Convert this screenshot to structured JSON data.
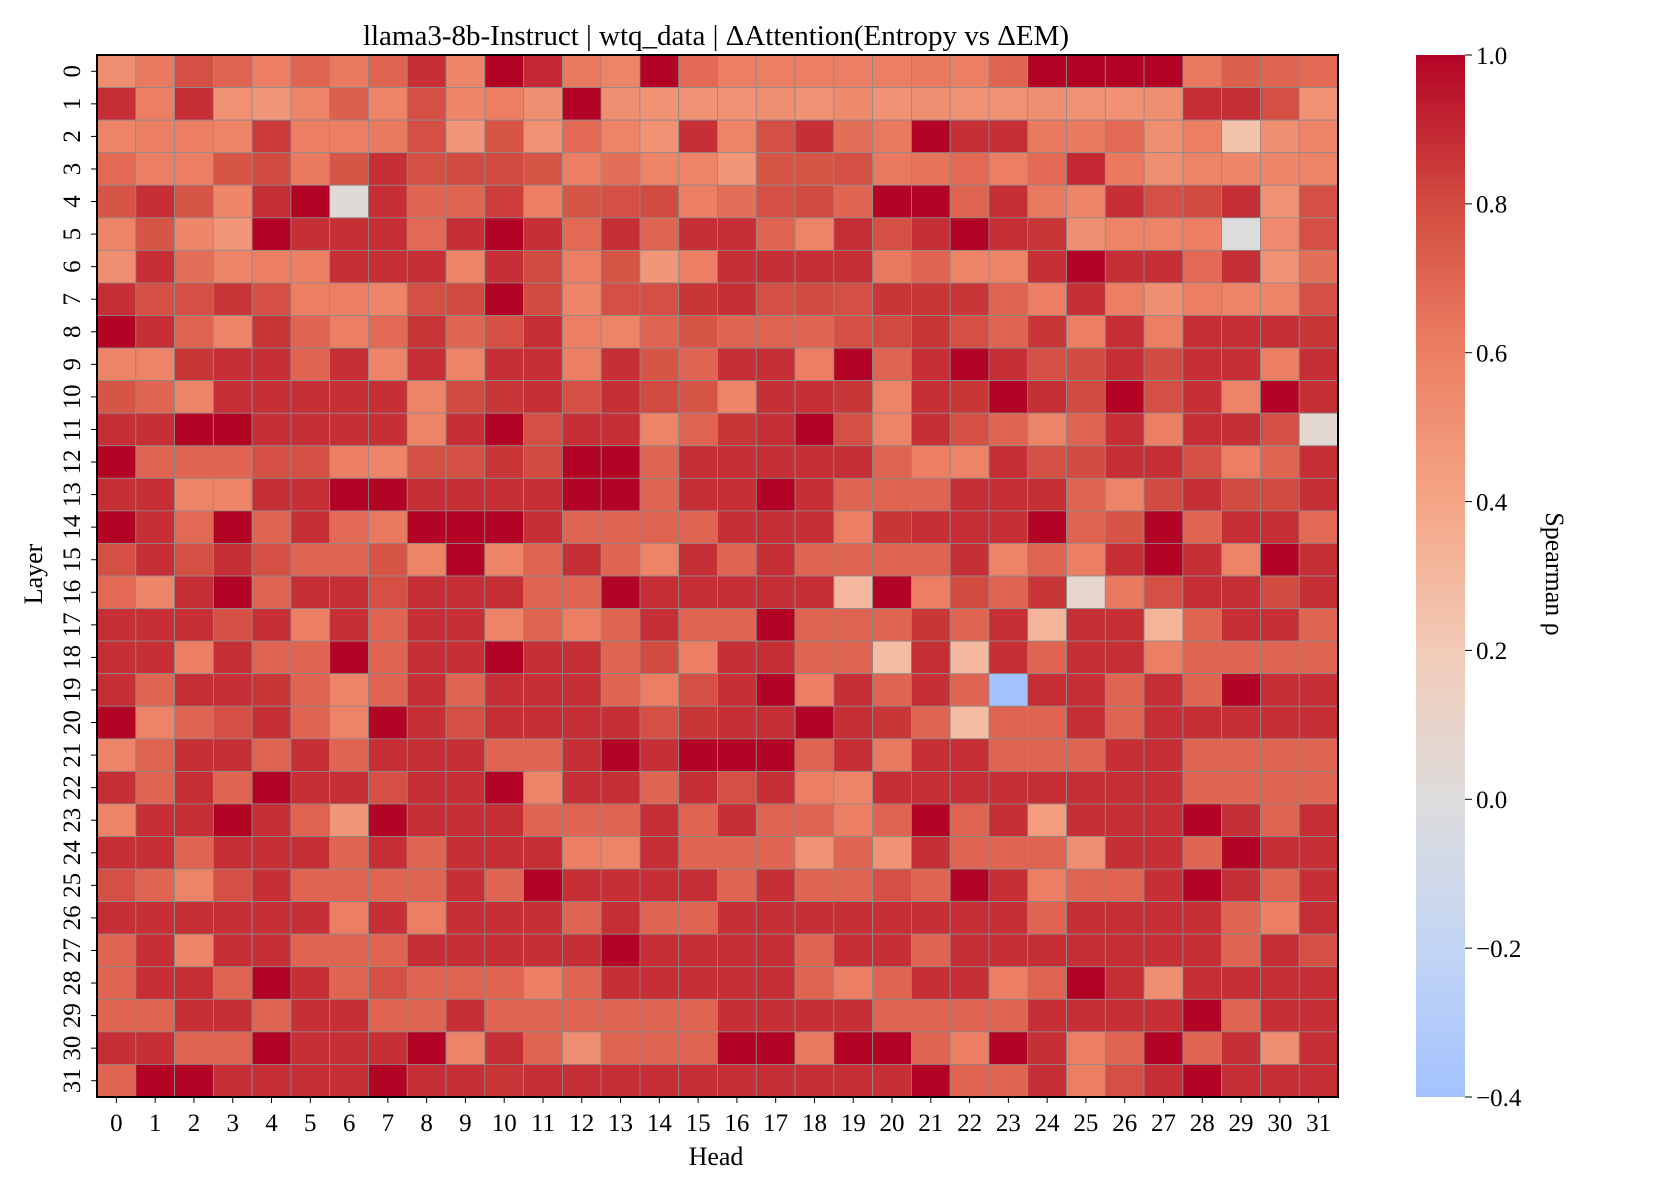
{
  "chart_data": {
    "type": "heatmap",
    "title": "llama3-8b-Instruct | wtq_data | ΔAttention(Entropy vs ΔEM)",
    "xlabel": "Head",
    "ylabel": "Layer",
    "colorbar_label": "Spearman ρ",
    "x_tick_labels": [
      "0",
      "1",
      "2",
      "3",
      "4",
      "5",
      "6",
      "7",
      "8",
      "9",
      "10",
      "11",
      "12",
      "13",
      "14",
      "15",
      "16",
      "17",
      "18",
      "19",
      "20",
      "21",
      "22",
      "23",
      "24",
      "25",
      "26",
      "27",
      "28",
      "29",
      "30",
      "31"
    ],
    "y_tick_labels": [
      "0",
      "1",
      "2",
      "3",
      "4",
      "5",
      "6",
      "7",
      "8",
      "9",
      "10",
      "11",
      "12",
      "13",
      "14",
      "15",
      "16",
      "17",
      "18",
      "19",
      "20",
      "21",
      "22",
      "23",
      "24",
      "25",
      "26",
      "27",
      "28",
      "29",
      "30",
      "31"
    ],
    "colorbar_ticks": [
      {
        "value": 1.0,
        "label": "1.0"
      },
      {
        "value": 0.8,
        "label": "0.8"
      },
      {
        "value": 0.6,
        "label": "0.6"
      },
      {
        "value": 0.4,
        "label": "0.4"
      },
      {
        "value": 0.2,
        "label": "0.2"
      },
      {
        "value": 0.0,
        "label": "0.0"
      },
      {
        "value": -0.2,
        "label": "−0.2"
      },
      {
        "value": -0.4,
        "label": "−0.4"
      }
    ],
    "vmin": -0.4,
    "vmax": 1.0,
    "colormap": "coolwarm",
    "colormap_stops": [
      {
        "v": -0.4,
        "color": "#a3c2fe"
      },
      {
        "v": -0.2,
        "color": "#c3d5f4"
      },
      {
        "v": 0.0,
        "color": "#dddcdc"
      },
      {
        "v": 0.2,
        "color": "#f2cbb7"
      },
      {
        "v": 0.4,
        "color": "#f5a586"
      },
      {
        "v": 0.6,
        "color": "#ec7f63"
      },
      {
        "v": 0.8,
        "color": "#d24b40"
      },
      {
        "v": 1.0,
        "color": "#b40426"
      }
    ],
    "grid_line_color": "#8c8c8c",
    "values": [
      [
        0.52,
        0.62,
        0.78,
        0.7,
        0.6,
        0.7,
        0.62,
        0.7,
        0.88,
        0.58,
        1.0,
        0.9,
        0.62,
        0.58,
        1.0,
        0.68,
        0.6,
        0.6,
        0.6,
        0.6,
        0.6,
        0.62,
        0.6,
        0.7,
        1.0,
        1.0,
        1.0,
        1.0,
        0.62,
        0.72,
        0.7,
        0.68
      ],
      [
        0.88,
        0.6,
        0.88,
        0.5,
        0.48,
        0.58,
        0.72,
        0.58,
        0.78,
        0.56,
        0.6,
        0.52,
        1.0,
        0.52,
        0.5,
        0.5,
        0.5,
        0.52,
        0.5,
        0.55,
        0.5,
        0.52,
        0.5,
        0.5,
        0.52,
        0.5,
        0.5,
        0.52,
        0.88,
        0.88,
        0.78,
        0.5
      ],
      [
        0.58,
        0.6,
        0.6,
        0.58,
        0.85,
        0.6,
        0.6,
        0.62,
        0.78,
        0.48,
        0.76,
        0.5,
        0.68,
        0.58,
        0.5,
        0.88,
        0.58,
        0.78,
        0.88,
        0.66,
        0.62,
        1.0,
        0.88,
        0.88,
        0.62,
        0.62,
        0.68,
        0.52,
        0.6,
        0.24,
        0.52,
        0.58
      ],
      [
        0.68,
        0.6,
        0.6,
        0.76,
        0.8,
        0.62,
        0.76,
        0.88,
        0.78,
        0.8,
        0.8,
        0.76,
        0.6,
        0.66,
        0.58,
        0.58,
        0.48,
        0.76,
        0.76,
        0.78,
        0.62,
        0.64,
        0.68,
        0.6,
        0.68,
        0.9,
        0.62,
        0.52,
        0.58,
        0.56,
        0.56,
        0.58
      ],
      [
        0.76,
        0.88,
        0.76,
        0.56,
        0.88,
        1.0,
        0.02,
        0.88,
        0.7,
        0.7,
        0.84,
        0.6,
        0.76,
        0.78,
        0.8,
        0.6,
        0.66,
        0.78,
        0.8,
        0.7,
        1.0,
        1.0,
        0.7,
        0.88,
        0.62,
        0.58,
        0.88,
        0.78,
        0.8,
        0.88,
        0.5,
        0.78
      ],
      [
        0.58,
        0.76,
        0.56,
        0.48,
        1.0,
        0.88,
        0.88,
        0.88,
        0.68,
        0.88,
        1.0,
        0.88,
        0.68,
        0.88,
        0.7,
        0.88,
        0.88,
        0.7,
        0.58,
        0.88,
        0.78,
        0.88,
        1.0,
        0.88,
        0.86,
        0.52,
        0.58,
        0.58,
        0.6,
        0.0,
        0.54,
        0.78
      ],
      [
        0.52,
        0.88,
        0.66,
        0.58,
        0.6,
        0.6,
        0.88,
        0.88,
        0.88,
        0.58,
        0.88,
        0.8,
        0.6,
        0.76,
        0.48,
        0.6,
        0.88,
        0.88,
        0.88,
        0.88,
        0.62,
        0.7,
        0.58,
        0.58,
        0.88,
        1.0,
        0.88,
        0.88,
        0.68,
        0.88,
        0.5,
        0.66
      ],
      [
        0.88,
        0.78,
        0.78,
        0.86,
        0.78,
        0.6,
        0.6,
        0.58,
        0.78,
        0.8,
        1.0,
        0.8,
        0.58,
        0.78,
        0.78,
        0.86,
        0.88,
        0.78,
        0.8,
        0.78,
        0.86,
        0.86,
        0.86,
        0.7,
        0.6,
        0.88,
        0.6,
        0.52,
        0.6,
        0.58,
        0.58,
        0.78
      ],
      [
        1.0,
        0.88,
        0.7,
        0.58,
        0.86,
        0.7,
        0.6,
        0.68,
        0.86,
        0.7,
        0.78,
        0.88,
        0.6,
        0.58,
        0.7,
        0.76,
        0.7,
        0.7,
        0.7,
        0.78,
        0.8,
        0.86,
        0.78,
        0.7,
        0.86,
        0.6,
        0.88,
        0.6,
        0.88,
        0.88,
        0.88,
        0.86
      ],
      [
        0.58,
        0.58,
        0.86,
        0.88,
        0.88,
        0.7,
        0.88,
        0.58,
        0.88,
        0.58,
        0.88,
        0.88,
        0.6,
        0.88,
        0.76,
        0.7,
        0.88,
        0.88,
        0.6,
        1.0,
        0.7,
        0.88,
        1.0,
        0.88,
        0.78,
        0.8,
        0.88,
        0.8,
        0.88,
        0.88,
        0.6,
        0.88
      ],
      [
        0.76,
        0.7,
        0.58,
        0.88,
        0.88,
        0.88,
        0.88,
        0.88,
        0.58,
        0.8,
        0.86,
        0.88,
        0.78,
        0.88,
        0.8,
        0.76,
        0.58,
        0.88,
        0.88,
        0.86,
        0.58,
        0.88,
        0.86,
        1.0,
        0.88,
        0.8,
        1.0,
        0.78,
        0.88,
        0.58,
        1.0,
        0.88
      ],
      [
        0.88,
        0.88,
        1.0,
        1.0,
        0.88,
        0.88,
        0.88,
        0.88,
        0.58,
        0.88,
        1.0,
        0.78,
        0.88,
        0.88,
        0.58,
        0.7,
        0.86,
        0.88,
        1.0,
        0.78,
        0.58,
        0.88,
        0.78,
        0.7,
        0.58,
        0.7,
        0.88,
        0.6,
        0.88,
        0.88,
        0.78,
        0.06
      ],
      [
        1.0,
        0.7,
        0.7,
        0.7,
        0.78,
        0.78,
        0.6,
        0.58,
        0.78,
        0.78,
        0.86,
        0.8,
        1.0,
        1.0,
        0.7,
        0.88,
        0.88,
        0.88,
        0.88,
        0.88,
        0.7,
        0.6,
        0.58,
        0.88,
        0.78,
        0.8,
        0.88,
        0.88,
        0.78,
        0.6,
        0.7,
        0.88
      ],
      [
        0.88,
        0.88,
        0.58,
        0.58,
        0.88,
        0.88,
        1.0,
        1.0,
        0.88,
        0.88,
        0.88,
        0.88,
        1.0,
        1.0,
        0.7,
        0.88,
        0.88,
        1.0,
        0.88,
        0.7,
        0.7,
        0.7,
        0.88,
        0.88,
        0.88,
        0.7,
        0.58,
        0.8,
        0.88,
        0.8,
        0.8,
        0.88
      ],
      [
        1.0,
        0.88,
        0.68,
        1.0,
        0.7,
        0.88,
        0.68,
        0.62,
        1.0,
        1.0,
        1.0,
        0.88,
        0.7,
        0.7,
        0.7,
        0.7,
        0.88,
        0.88,
        0.88,
        0.6,
        0.86,
        0.88,
        0.88,
        0.88,
        1.0,
        0.7,
        0.76,
        1.0,
        0.7,
        0.88,
        0.88,
        0.68
      ],
      [
        0.78,
        0.88,
        0.78,
        0.88,
        0.78,
        0.7,
        0.7,
        0.76,
        0.58,
        1.0,
        0.58,
        0.7,
        0.88,
        0.7,
        0.58,
        0.88,
        0.7,
        0.88,
        0.7,
        0.7,
        0.7,
        0.7,
        0.88,
        0.58,
        0.7,
        0.6,
        0.88,
        1.0,
        0.88,
        0.58,
        1.0,
        0.88
      ],
      [
        0.68,
        0.56,
        0.88,
        1.0,
        0.7,
        0.88,
        0.88,
        0.78,
        0.88,
        0.88,
        0.88,
        0.7,
        0.7,
        1.0,
        0.88,
        0.88,
        0.88,
        0.88,
        0.88,
        0.3,
        1.0,
        0.6,
        0.8,
        0.7,
        0.86,
        0.08,
        0.62,
        0.78,
        0.88,
        0.88,
        0.8,
        0.88
      ],
      [
        0.88,
        0.88,
        0.88,
        0.78,
        0.88,
        0.6,
        0.88,
        0.7,
        0.88,
        0.88,
        0.58,
        0.7,
        0.6,
        0.7,
        0.88,
        0.7,
        0.7,
        1.0,
        0.7,
        0.7,
        0.7,
        0.86,
        0.7,
        0.88,
        0.32,
        0.88,
        0.88,
        0.32,
        0.7,
        0.88,
        0.88,
        0.7
      ],
      [
        0.88,
        0.88,
        0.6,
        0.88,
        0.7,
        0.7,
        1.0,
        0.7,
        0.88,
        0.88,
        1.0,
        0.88,
        0.88,
        0.7,
        0.8,
        0.6,
        0.88,
        0.88,
        0.7,
        0.7,
        0.28,
        0.88,
        0.3,
        0.88,
        0.7,
        0.88,
        0.88,
        0.6,
        0.7,
        0.7,
        0.7,
        0.7
      ],
      [
        0.88,
        0.7,
        0.88,
        0.88,
        0.86,
        0.7,
        0.58,
        0.7,
        0.88,
        0.7,
        0.88,
        0.88,
        0.88,
        0.7,
        0.6,
        0.78,
        0.88,
        1.0,
        0.6,
        0.88,
        0.7,
        0.88,
        0.7,
        -0.4,
        0.88,
        0.88,
        0.7,
        0.88,
        0.7,
        1.0,
        0.88,
        0.88
      ],
      [
        1.0,
        0.58,
        0.7,
        0.78,
        0.88,
        0.7,
        0.58,
        1.0,
        0.88,
        0.78,
        0.88,
        0.88,
        0.88,
        0.88,
        0.78,
        0.86,
        0.88,
        0.88,
        1.0,
        0.88,
        0.86,
        0.7,
        0.28,
        0.7,
        0.7,
        0.88,
        0.7,
        0.88,
        0.88,
        0.88,
        0.88,
        0.88
      ],
      [
        0.58,
        0.7,
        0.88,
        0.88,
        0.7,
        0.88,
        0.7,
        0.88,
        0.88,
        0.88,
        0.7,
        0.7,
        0.88,
        1.0,
        0.88,
        1.0,
        1.0,
        1.0,
        0.7,
        0.88,
        0.62,
        0.88,
        0.88,
        0.7,
        0.7,
        0.7,
        0.88,
        0.88,
        0.7,
        0.7,
        0.7,
        0.7
      ],
      [
        0.88,
        0.7,
        0.88,
        0.7,
        1.0,
        0.88,
        0.88,
        0.78,
        0.88,
        0.88,
        1.0,
        0.58,
        0.88,
        0.88,
        0.7,
        0.88,
        0.78,
        0.88,
        0.6,
        0.58,
        0.88,
        0.88,
        0.88,
        0.88,
        0.88,
        0.88,
        0.88,
        0.88,
        0.7,
        0.7,
        0.7,
        0.7
      ],
      [
        0.58,
        0.88,
        0.88,
        1.0,
        0.88,
        0.7,
        0.48,
        1.0,
        0.88,
        0.88,
        0.88,
        0.7,
        0.7,
        0.7,
        0.88,
        0.7,
        0.88,
        0.7,
        0.7,
        0.6,
        0.7,
        1.0,
        0.7,
        0.88,
        0.44,
        0.88,
        0.88,
        0.88,
        1.0,
        0.88,
        0.7,
        0.88
      ],
      [
        0.88,
        0.88,
        0.7,
        0.88,
        0.88,
        0.88,
        0.7,
        0.88,
        0.7,
        0.88,
        0.88,
        0.88,
        0.6,
        0.58,
        0.88,
        0.7,
        0.7,
        0.7,
        0.5,
        0.7,
        0.5,
        0.88,
        0.7,
        0.7,
        0.7,
        0.52,
        0.88,
        0.88,
        0.7,
        1.0,
        0.88,
        0.88
      ],
      [
        0.78,
        0.7,
        0.58,
        0.78,
        0.88,
        0.7,
        0.7,
        0.7,
        0.7,
        0.88,
        0.7,
        1.0,
        0.88,
        0.88,
        0.88,
        0.88,
        0.7,
        0.88,
        0.7,
        0.7,
        0.78,
        0.7,
        1.0,
        0.88,
        0.6,
        0.7,
        0.7,
        0.88,
        1.0,
        0.88,
        0.7,
        0.88
      ],
      [
        0.88,
        0.88,
        0.88,
        0.88,
        0.88,
        0.88,
        0.6,
        0.88,
        0.6,
        0.88,
        0.88,
        0.88,
        0.7,
        0.88,
        0.7,
        0.7,
        0.88,
        0.88,
        0.88,
        0.88,
        0.88,
        0.88,
        0.88,
        0.88,
        0.7,
        0.88,
        0.88,
        0.88,
        0.88,
        0.7,
        0.6,
        0.88
      ],
      [
        0.7,
        0.88,
        0.58,
        0.88,
        0.88,
        0.7,
        0.7,
        0.7,
        0.88,
        0.88,
        0.88,
        0.88,
        0.88,
        1.0,
        0.88,
        0.88,
        0.88,
        0.88,
        0.7,
        0.88,
        0.88,
        0.7,
        0.88,
        0.88,
        0.88,
        0.88,
        0.88,
        0.88,
        0.88,
        0.7,
        0.88,
        0.78
      ],
      [
        0.7,
        0.88,
        0.88,
        0.7,
        1.0,
        0.88,
        0.7,
        0.78,
        0.7,
        0.7,
        0.7,
        0.6,
        0.7,
        0.88,
        0.88,
        0.88,
        0.88,
        0.88,
        0.7,
        0.6,
        0.7,
        0.88,
        0.88,
        0.6,
        0.7,
        1.0,
        0.88,
        0.52,
        0.88,
        0.88,
        0.88,
        0.88
      ],
      [
        0.7,
        0.7,
        0.88,
        0.88,
        0.7,
        0.88,
        0.88,
        0.7,
        0.7,
        0.88,
        0.7,
        0.7,
        0.7,
        0.7,
        0.7,
        0.7,
        0.88,
        0.88,
        0.88,
        0.88,
        0.7,
        0.7,
        0.7,
        0.7,
        0.88,
        0.88,
        0.88,
        0.88,
        1.0,
        0.7,
        0.88,
        0.88
      ],
      [
        0.88,
        0.88,
        0.7,
        0.7,
        1.0,
        0.88,
        0.88,
        0.88,
        1.0,
        0.58,
        0.88,
        0.7,
        0.52,
        0.7,
        0.7,
        0.7,
        1.0,
        1.0,
        0.62,
        1.0,
        1.0,
        0.7,
        0.6,
        1.0,
        0.88,
        0.6,
        0.7,
        1.0,
        0.7,
        0.88,
        0.52,
        0.88
      ],
      [
        0.7,
        1.0,
        1.0,
        0.88,
        0.88,
        0.88,
        0.88,
        1.0,
        0.88,
        0.88,
        0.86,
        0.88,
        0.88,
        0.88,
        0.88,
        0.88,
        0.88,
        0.88,
        0.88,
        0.88,
        0.88,
        1.0,
        0.7,
        0.7,
        0.88,
        0.6,
        0.78,
        0.88,
        1.0,
        0.88,
        0.88,
        0.88
      ]
    ]
  }
}
